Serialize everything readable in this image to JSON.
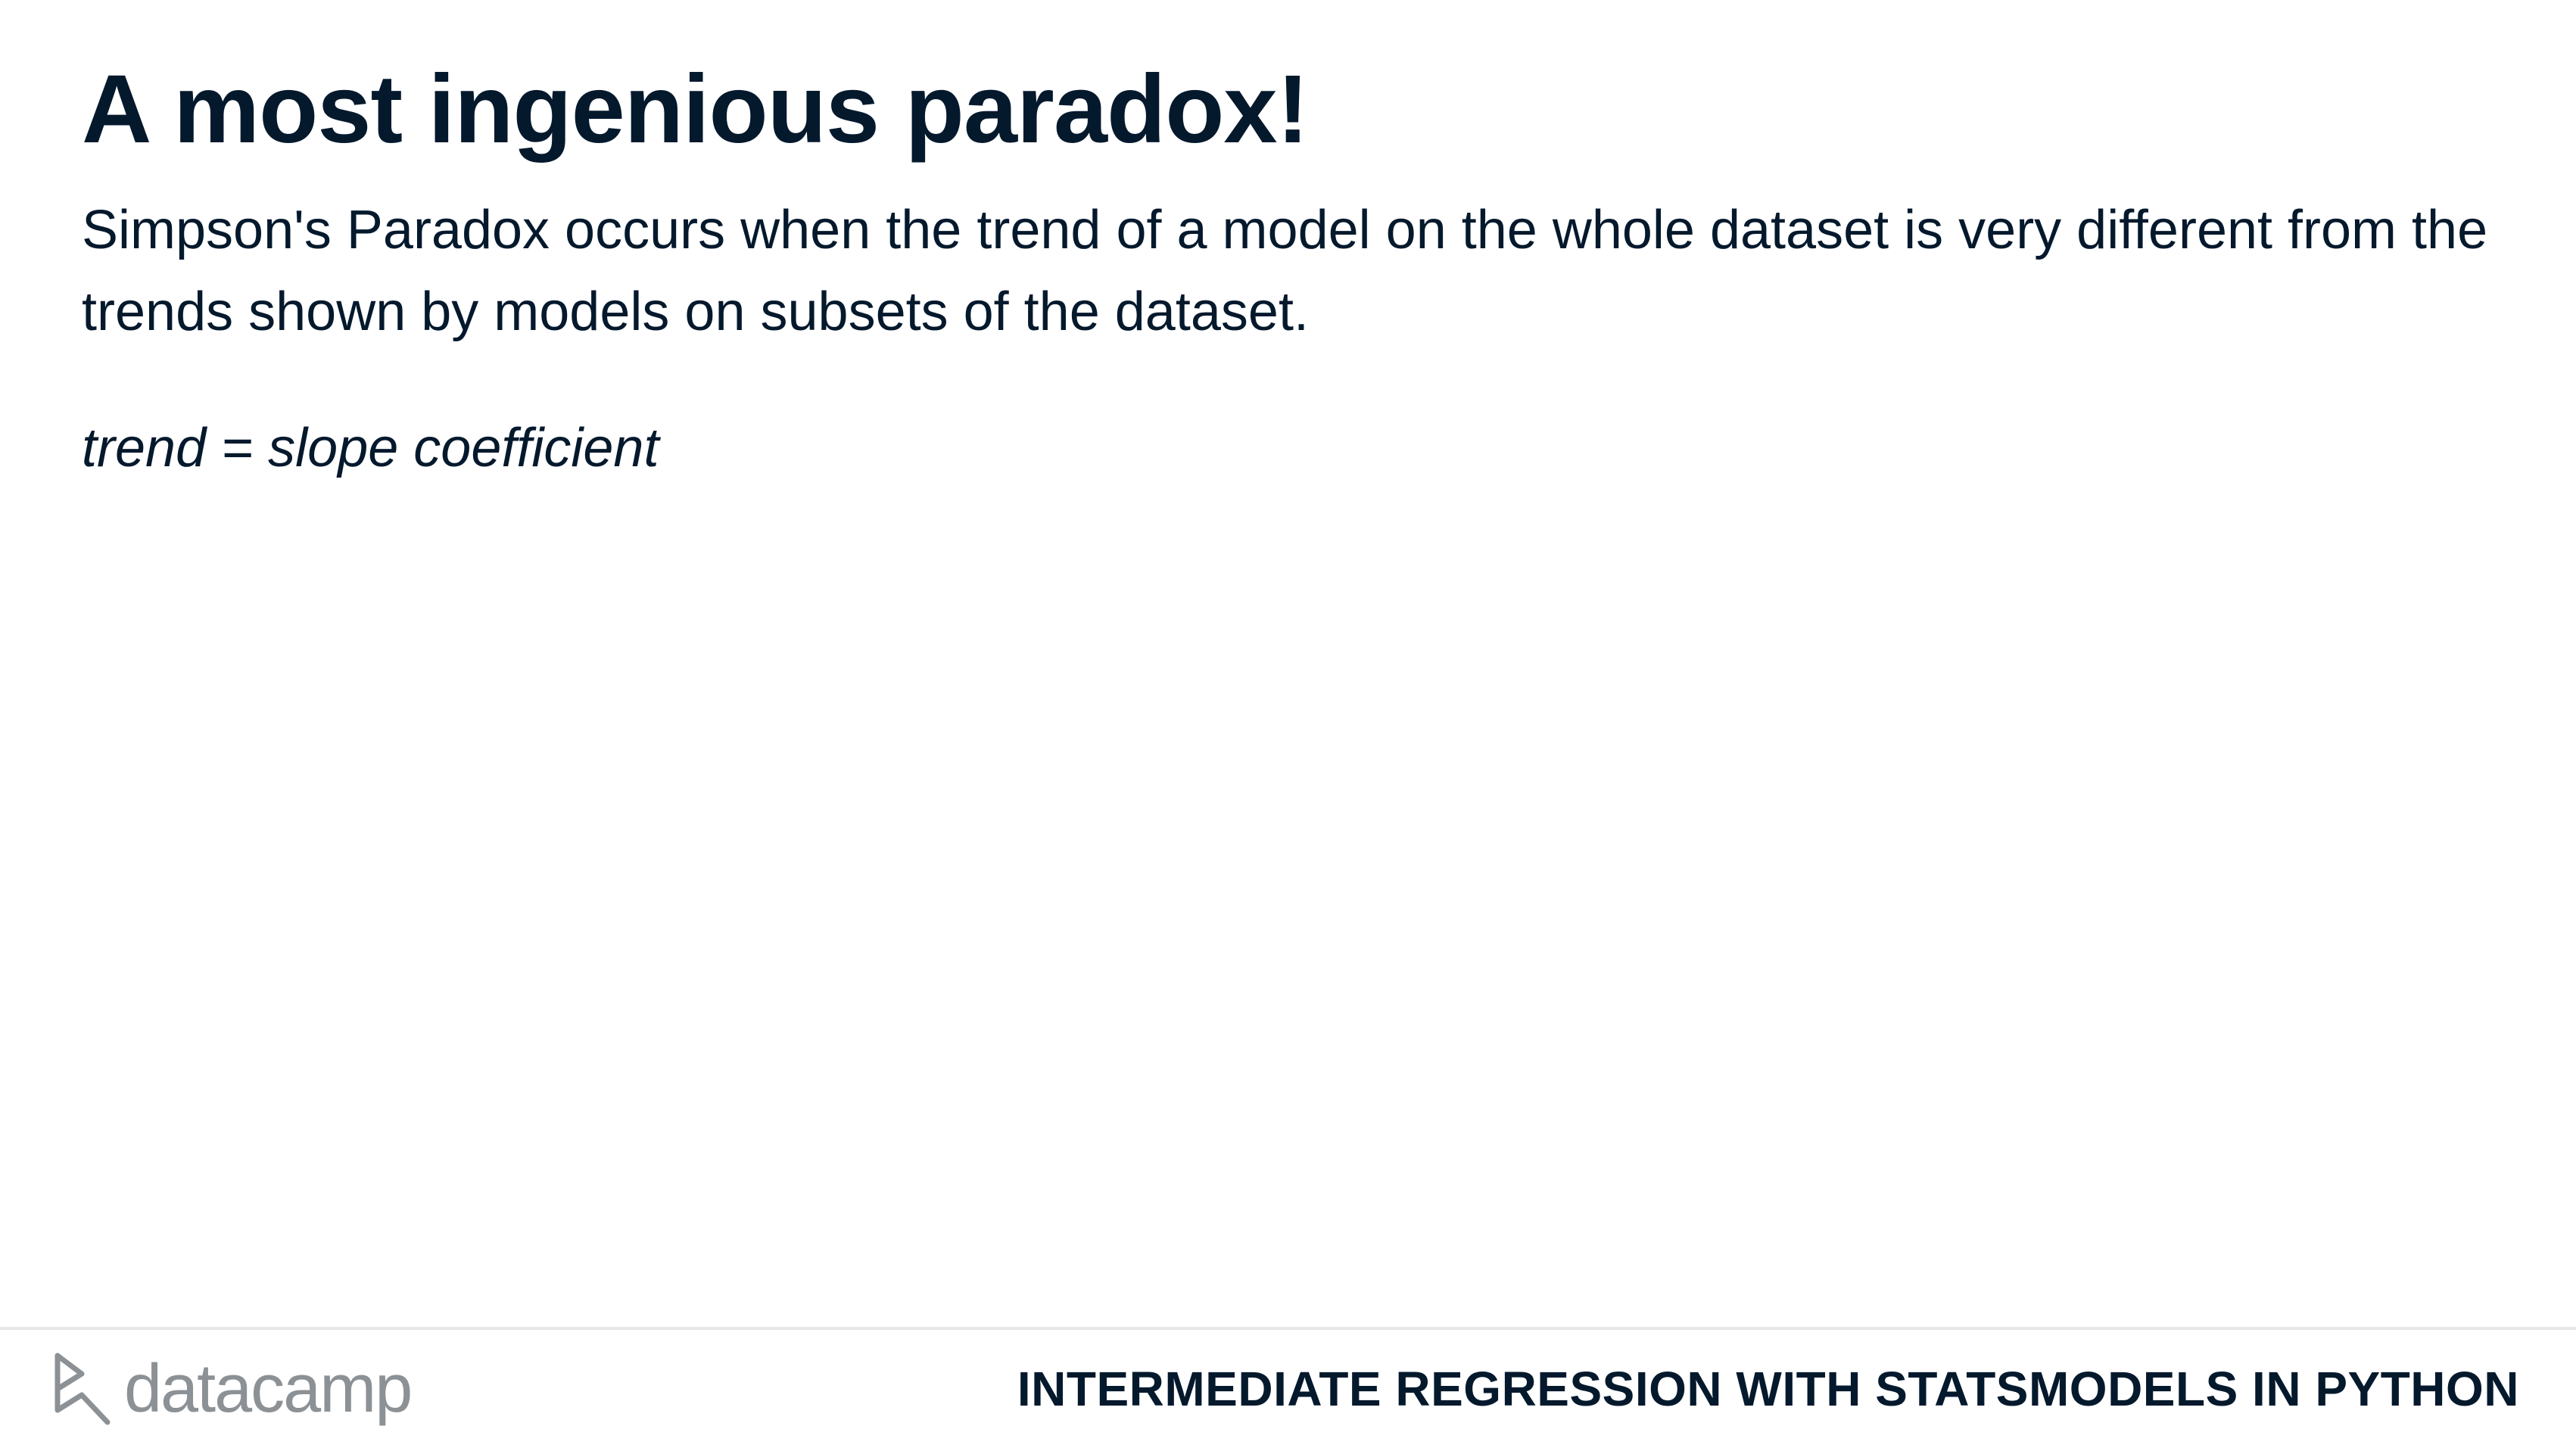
{
  "slide": {
    "title": "A most ingenious paradox!",
    "body": "Simpson's Paradox occurs when the trend of a model on the whole dataset is very different from the trends shown by models on subsets of the dataset.",
    "formula": "trend = slope coefficient"
  },
  "footer": {
    "logo_text": "datacamp",
    "logo_icon": "datacamp-logo-icon",
    "course_title": "INTERMEDIATE REGRESSION WITH STATSMODELS IN PYTHON"
  },
  "colors": {
    "text": "#05192d",
    "logo": "#8c9196",
    "divider": "#e5e6e8",
    "background": "#ffffff"
  }
}
